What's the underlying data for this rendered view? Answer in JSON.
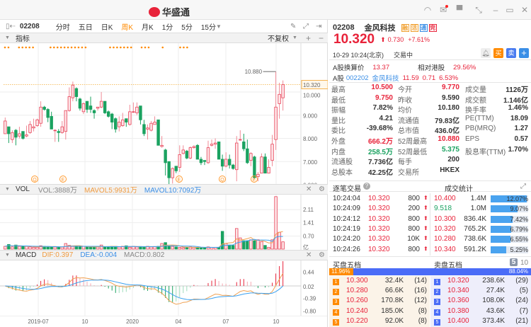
{
  "app": {
    "title": "华盛通"
  },
  "colors": {
    "up": "#e8233a",
    "down": "#1aa260",
    "accent": "#ff8a00",
    "blue": "#3a8ee6"
  },
  "window_controls": [
    "headset-icon",
    "mail-icon",
    "shirt-icon",
    "shrink-icon",
    "minimize-icon",
    "maximize-icon",
    "close-icon"
  ],
  "toolbar": {
    "code": "02208",
    "periods": [
      "分时",
      "五日",
      "日K",
      "周K",
      "月K",
      "1分",
      "5分",
      "15分"
    ],
    "active": "周K"
  },
  "indicator_bar": {
    "label": "指标",
    "adjust": "不复权",
    "plus": "+",
    "minus": "−"
  },
  "price_axis": [
    "10.320",
    "10.000",
    "9.000",
    "8.000",
    "7.000",
    "6.000"
  ],
  "price_labels": {
    "high": "10.880",
    "low": "5.550"
  },
  "event_markers": [
    "Q",
    "E",
    "E",
    "Q",
    "E"
  ],
  "vol": {
    "name": "VOL",
    "vol": "VOL:3888万",
    "ma5": "MAVOL5:9931万",
    "ma10": "MAVOL10:7092万",
    "axis": [
      "2.11",
      "1.41",
      "0.70",
      "亿"
    ]
  },
  "macd": {
    "name": "MACD",
    "dif": "DIF:0.397",
    "dea": "DEA:-0.004",
    "macd": "MACD:0.802",
    "axis": [
      "0.44",
      "0.02",
      "-0.39",
      "-0.80"
    ]
  },
  "date_axis": [
    "2019-07",
    "10",
    "2020",
    "04",
    "07",
    "10"
  ],
  "chart_data": {
    "type": "candlestick",
    "period": "weekly",
    "x_ticks": [
      "2019-07",
      "10",
      "2020",
      "04",
      "07",
      "10"
    ],
    "ylim": [
      5.4,
      11.0
    ],
    "last_price": 10.32,
    "ohlc": [
      [
        8.2,
        8.9,
        8.2,
        8.75
      ],
      [
        8.5,
        8.5,
        7.8,
        8.2
      ],
      [
        7.95,
        8.35,
        7.8,
        8.25
      ],
      [
        8.35,
        8.4,
        7.7,
        8.05
      ],
      [
        8.1,
        8.5,
        8.0,
        8.2
      ],
      [
        8.3,
        8.3,
        7.95,
        8.0
      ],
      [
        8.1,
        8.55,
        8.05,
        8.15
      ],
      [
        8.25,
        8.75,
        8.2,
        8.6
      ],
      [
        8.45,
        8.85,
        8.3,
        8.5
      ],
      [
        8.55,
        8.85,
        8.5,
        8.8
      ],
      [
        8.65,
        9.6,
        8.5,
        9.35
      ],
      [
        9.35,
        9.4,
        9.2,
        9.25
      ],
      [
        9.25,
        9.3,
        8.7,
        8.9
      ],
      [
        8.95,
        9.15,
        8.4,
        8.4
      ],
      [
        8.35,
        8.4,
        7.85,
        8.35
      ],
      [
        8.3,
        8.4,
        7.85,
        8.25
      ],
      [
        8.25,
        8.75,
        8.2,
        8.5
      ],
      [
        8.3,
        9.2,
        7.95,
        9.2
      ],
      [
        9.2,
        10.2,
        9.15,
        9.8
      ],
      [
        9.75,
        10.45,
        9.6,
        10.3
      ],
      [
        10.15,
        10.2,
        9.6,
        9.8
      ],
      [
        9.7,
        9.75,
        9.2,
        9.3
      ],
      [
        9.15,
        9.55,
        9.05,
        9.5
      ],
      [
        9.6,
        9.6,
        9.1,
        9.25
      ],
      [
        9.4,
        9.8,
        9.1,
        9.25
      ],
      [
        9.2,
        9.25,
        8.85,
        9.1
      ],
      [
        9.3,
        9.35,
        9.2,
        9.35
      ],
      [
        9.35,
        10.0,
        9.3,
        9.6
      ],
      [
        9.6,
        9.6,
        9.05,
        9.1
      ],
      [
        9.15,
        9.2,
        8.9,
        8.95
      ],
      [
        9.05,
        9.1,
        8.4,
        8.7
      ],
      [
        8.85,
        8.9,
        8.25,
        8.4
      ],
      [
        8.5,
        8.95,
        8.3,
        8.7
      ],
      [
        8.55,
        9.1,
        8.5,
        8.8
      ],
      [
        8.85,
        8.85,
        8.5,
        8.7
      ],
      [
        8.6,
        9.45,
        8.55,
        9.15
      ],
      [
        9.15,
        9.55,
        9.1,
        9.15
      ],
      [
        9.1,
        9.55,
        9.0,
        9.35
      ],
      [
        9.4,
        9.4,
        8.6,
        8.8
      ],
      [
        8.6,
        8.8,
        8.1,
        8.2
      ],
      [
        8.4,
        8.6,
        7.95,
        8.45
      ],
      [
        8.35,
        8.75,
        8.3,
        8.65
      ],
      [
        8.6,
        8.95,
        8.6,
        8.7
      ],
      [
        8.8,
        8.8,
        7.7,
        7.7
      ],
      [
        7.65,
        8.1,
        7.6,
        7.7
      ],
      [
        7.5,
        7.55,
        6.4,
        6.95
      ],
      [
        7.0,
        7.0,
        5.55,
        6.3
      ],
      [
        6.3,
        6.75,
        6.05,
        6.7
      ],
      [
        6.8,
        6.8,
        6.5,
        6.6
      ],
      [
        6.75,
        7.7,
        6.55,
        7.3
      ],
      [
        7.35,
        7.7,
        7.3,
        7.5
      ],
      [
        7.45,
        7.5,
        7.1,
        7.15
      ],
      [
        7.15,
        7.65,
        7.1,
        7.6
      ],
      [
        7.6,
        7.7,
        7.55,
        7.65
      ],
      [
        7.7,
        7.75,
        7.1,
        7.1
      ],
      [
        7.1,
        7.2,
        6.85,
        6.95
      ],
      [
        7.05,
        7.05,
        6.85,
        7.0
      ],
      [
        6.95,
        7.9,
        6.9,
        7.6
      ],
      [
        7.7,
        7.95,
        7.65,
        7.75
      ],
      [
        7.75,
        8.0,
        7.55,
        7.8
      ],
      [
        7.85,
        7.85,
        7.1,
        7.1
      ],
      [
        7.1,
        7.3,
        6.6,
        6.8
      ],
      [
        6.8,
        7.4,
        6.75,
        7.1
      ],
      [
        7.1,
        7.3,
        6.7,
        6.85
      ],
      [
        6.85,
        6.9,
        6.65,
        6.7
      ],
      [
        6.65,
        8.1,
        6.15,
        7.8
      ],
      [
        7.95,
        8.35,
        7.9,
        7.95
      ],
      [
        7.85,
        8.2,
        7.45,
        7.55
      ],
      [
        7.55,
        7.95,
        6.9,
        6.95
      ],
      [
        7.05,
        7.4,
        6.8,
        7.35
      ],
      [
        7.2,
        7.25,
        6.25,
        6.3
      ],
      [
        6.35,
        6.55,
        6.15,
        6.45
      ],
      [
        6.5,
        7.35,
        6.5,
        7.2
      ],
      [
        7.2,
        7.35,
        6.5,
        6.5
      ],
      [
        6.5,
        7.1,
        6.5,
        6.75
      ],
      [
        7.05,
        8.15,
        6.8,
        7.75
      ],
      [
        7.95,
        10.88,
        7.5,
        9.35
      ],
      [
        9.5,
        10.4,
        8.85,
        9.9
      ],
      [
        9.75,
        10.5,
        9.2,
        10.32
      ]
    ],
    "volume_yi": [
      0.15,
      0.25,
      0.12,
      0.22,
      0.15,
      0.14,
      0.15,
      0.12,
      0.1,
      0.1,
      0.18,
      0.15,
      0.14,
      0.12,
      0.12,
      0.1,
      0.12,
      0.3,
      0.2,
      0.15,
      0.15,
      0.12,
      0.15,
      0.12,
      0.1,
      0.12,
      0.12,
      0.22,
      0.12,
      0.12,
      0.15,
      0.15,
      0.12,
      0.15,
      0.18,
      0.1,
      0.15,
      0.12,
      0.14,
      0.12,
      0.15,
      0.12,
      0.14,
      0.15,
      0.3,
      0.35,
      0.15,
      0.15,
      0.12,
      0.1,
      0.08,
      0.1,
      0.12,
      0.1,
      0.08,
      0.08,
      0.08,
      0.12,
      0.1,
      0.1,
      0.1,
      0.95,
      0.3,
      0.22,
      0.2,
      1.1,
      0.6,
      0.45,
      0.45,
      0.5,
      0.45,
      0.5,
      0.4,
      0.2,
      0.1,
      0.5,
      2.8,
      0.9,
      0.39
    ],
    "vol_ylim": [
      0,
      2.9
    ],
    "macd_ylim": [
      -0.9,
      0.75
    ]
  },
  "quote": {
    "code": "02208",
    "name": "金风科技",
    "tags": [
      "融",
      "活",
      "通",
      "完"
    ],
    "price": "10.320",
    "change": "0.730",
    "change_pct": "+7.61%",
    "time": "10-29  10:24(北京)",
    "status": "交易中",
    "actions": [
      "提醒",
      "买",
      "卖",
      "+"
    ],
    "a_conv_label": "A股换算价",
    "a_conv": "13.37",
    "rel_label": "相对港股",
    "rel": "29.56%",
    "a_label": "A股",
    "a_code": "002202",
    "a_name": "金风科技",
    "a_price": "11.59",
    "a_chg": "0.71",
    "a_pct": "6.53%"
  },
  "stats": [
    [
      [
        "最高",
        "10.500",
        "red"
      ],
      [
        "今开",
        "9.770",
        "red"
      ],
      [
        "成交量",
        "1126万",
        ""
      ]
    ],
    [
      [
        "最低",
        "9.750",
        "red"
      ],
      [
        "昨收",
        "9.590",
        ""
      ],
      [
        "成交额",
        "1.146亿",
        ""
      ]
    ],
    [
      [
        "振幅",
        "7.82%",
        ""
      ],
      [
        "均价",
        "10.180",
        ""
      ],
      [
        "换手率",
        "1.46%",
        ""
      ]
    ],
    [
      [
        "量比",
        "4.21",
        ""
      ],
      [
        "流通值",
        "79.83亿",
        ""
      ],
      [
        "PE(TTM)",
        "18.09",
        ""
      ]
    ],
    [
      [
        "委比",
        "-39.68%",
        ""
      ],
      [
        "总市值",
        "436.0亿",
        ""
      ],
      [
        "PB(MRQ)",
        "1.27",
        ""
      ]
    ],
    [
      [
        "外盘",
        "666.2万",
        "red"
      ],
      [
        "52周最高",
        "10.880",
        "red"
      ],
      [
        "EPS",
        "0.57",
        ""
      ]
    ],
    [
      [
        "内盘",
        "258.5万",
        "green"
      ],
      [
        "52周最低",
        "5.375",
        "green"
      ],
      [
        "股息率(TTM)",
        "1.70%",
        ""
      ]
    ],
    [
      [
        "流通股",
        "7.736亿",
        ""
      ],
      [
        "每手",
        "200",
        ""
      ]
    ],
    [
      [
        "总股本",
        "42.25亿",
        ""
      ],
      [
        "交易所",
        "HKEX",
        ""
      ]
    ]
  ],
  "ticks": {
    "title": "逐笔交易",
    "stats_title": "成交统计",
    "rows": [
      [
        "10:24:04",
        "10.320",
        "800"
      ],
      [
        "10:24:09",
        "10.320",
        "200"
      ],
      [
        "10:24:12",
        "10.320",
        "800"
      ],
      [
        "10:24:19",
        "10.320",
        "800"
      ],
      [
        "10:24:20",
        "10.320",
        "10K"
      ],
      [
        "10:24:26",
        "10.320",
        "800"
      ]
    ],
    "dist": [
      [
        "10.400",
        "1.4M",
        "12.07%",
        12.07,
        "red"
      ],
      [
        "9.518",
        "1.0M",
        "9.07%",
        9.07,
        "green"
      ],
      [
        "10.300",
        "836.4K",
        "7.42%",
        7.42,
        "red"
      ],
      [
        "10.320",
        "765.2K",
        "6.79%",
        6.79,
        "red"
      ],
      [
        "10.280",
        "738.6K",
        "6.55%",
        6.55,
        "red"
      ],
      [
        "10.340",
        "591.2K",
        "5.25%",
        5.25,
        "red"
      ]
    ]
  },
  "orderbook": {
    "bid_title": "买盘五档",
    "ask_title": "卖盘五档",
    "depth": [
      "5",
      "10"
    ],
    "bid_pct": "11.96%",
    "ask_pct": "88.04%",
    "bid_ratio": 11.96,
    "bids": [
      [
        "1",
        "10.300",
        "32.4K",
        "(14)"
      ],
      [
        "2",
        "10.280",
        "66.6K",
        "(16)"
      ],
      [
        "3",
        "10.260",
        "170.8K",
        "(12)"
      ],
      [
        "4",
        "10.240",
        "185.0K",
        "(8)"
      ],
      [
        "5",
        "10.220",
        "92.0K",
        "(8)"
      ]
    ],
    "asks": [
      [
        "1",
        "10.320",
        "238.6K",
        "(29)"
      ],
      [
        "2",
        "10.340",
        "27.4K",
        "(5)"
      ],
      [
        "3",
        "10.360",
        "108.0K",
        "(24)"
      ],
      [
        "4",
        "10.380",
        "43.6K",
        "(7)"
      ],
      [
        "5",
        "10.400",
        "373.4K",
        "(21)"
      ]
    ]
  }
}
